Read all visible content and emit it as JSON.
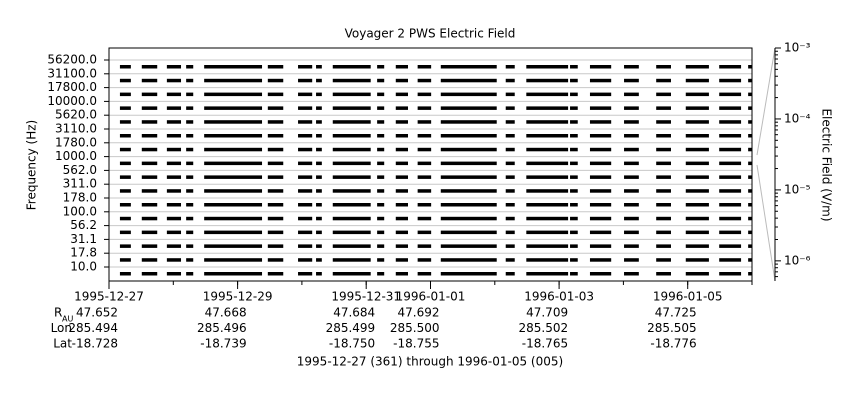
{
  "chart_data": {
    "type": "spectrogram",
    "title": "Voyager 2 PWS Electric Field",
    "ylabel": "Frequency (Hz)",
    "y2label": "Electric Field (V/m)",
    "channels": [
      "10.0",
      "17.8",
      "31.1",
      "56.2",
      "100.0",
      "178.0",
      "311.0",
      "562.0",
      "1000.0",
      "1780.0",
      "3110.0",
      "5620.0",
      "10000.0",
      "17800.0",
      "31100.0",
      "56200.0"
    ],
    "xlim": [
      0,
      10
    ],
    "xticks": [
      {
        "value": 0,
        "label": "1995-12-27"
      },
      {
        "value": 2,
        "label": "1995-12-29"
      },
      {
        "value": 4,
        "label": "1995-12-31"
      },
      {
        "value": 5,
        "label": "1996-01-01"
      },
      {
        "value": 7,
        "label": "1996-01-03"
      },
      {
        "value": 9,
        "label": "1996-01-05"
      }
    ],
    "segments": [
      [
        0.17,
        0.34
      ],
      [
        0.51,
        0.75
      ],
      [
        0.9,
        1.12
      ],
      [
        1.2,
        1.31
      ],
      [
        1.48,
        2.38
      ],
      [
        2.47,
        2.71
      ],
      [
        2.94,
        3.16
      ],
      [
        3.22,
        3.31
      ],
      [
        3.48,
        4.07
      ],
      [
        4.17,
        4.28
      ],
      [
        4.46,
        4.65
      ],
      [
        4.8,
        5.01
      ],
      [
        5.16,
        6.03
      ],
      [
        6.17,
        6.31
      ],
      [
        6.49,
        7.14
      ],
      [
        7.17,
        7.29
      ],
      [
        7.48,
        7.81
      ],
      [
        8.01,
        8.24
      ],
      [
        8.51,
        8.74
      ],
      [
        8.97,
        9.33
      ],
      [
        9.49,
        9.83
      ],
      [
        9.94,
        10.0
      ]
    ],
    "color": "#000000",
    "grid": true,
    "y2scale": "log",
    "y2lim": [
      5.2e-07,
      0.001
    ],
    "y2ticks": [
      {
        "value": 0.001,
        "label": "10⁻³"
      },
      {
        "value": 0.0001,
        "label": "10⁻⁴"
      },
      {
        "value": 1e-05,
        "label": "10⁻⁵"
      },
      {
        "value": 1e-06,
        "label": "10⁻⁶"
      }
    ],
    "ephemeris": [
      {
        "name": "R",
        "sub": "AU",
        "values": [
          "47.652",
          "47.668",
          "47.684",
          "47.692",
          "47.709",
          "47.725"
        ]
      },
      {
        "name": "Lon",
        "values": [
          "285.494",
          "285.496",
          "285.499",
          "285.500",
          "285.502",
          "285.505"
        ]
      },
      {
        "name": "Lat",
        "values": [
          "-18.728",
          "-18.739",
          "-18.750",
          "-18.755",
          "-18.765",
          "-18.776"
        ]
      }
    ],
    "footer": "1995-12-27 (361) through 1996-01-05 (005)"
  }
}
